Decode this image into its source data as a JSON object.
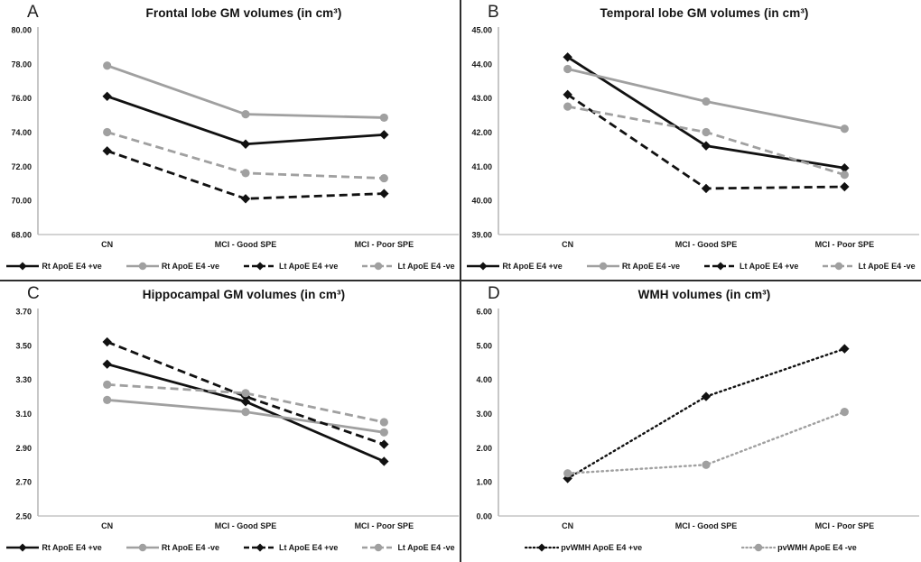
{
  "figure_title": "Four-panel line figure of brain volumes by group and ApoE E4 status",
  "colors": {
    "black_series": "#111111",
    "gray_series": "#a0a0a0",
    "axis": "#b9b9b9",
    "divider": "#2e2e2e",
    "text": "#1a1a1a"
  },
  "chart_data": [
    {
      "type": "line",
      "panel_label": "A",
      "title": "Frontal lobe GM volumes (in cm³)",
      "xlabel": "",
      "ylabel": "",
      "grid": false,
      "legend_position": "bottom",
      "categories": [
        "CN",
        "MCI - Good SPE",
        "MCI - Poor SPE"
      ],
      "ylim": [
        68.0,
        80.0
      ],
      "ytick_step": 2.0,
      "ytick_decimals": 2,
      "series": [
        {
          "name": "Rt ApoE E4 +ve",
          "values": [
            76.1,
            73.3,
            73.85
          ],
          "color": "#111111",
          "dash": "solid",
          "marker": "diamond"
        },
        {
          "name": "Rt ApoE E4 -ve",
          "values": [
            77.9,
            75.05,
            74.85
          ],
          "color": "#a0a0a0",
          "dash": "solid",
          "marker": "circle"
        },
        {
          "name": "Lt ApoE E4 +ve",
          "values": [
            72.9,
            70.1,
            70.4
          ],
          "color": "#111111",
          "dash": "dashed",
          "marker": "diamond"
        },
        {
          "name": "Lt ApoE E4 -ve",
          "values": [
            74.0,
            71.6,
            71.3
          ],
          "color": "#a0a0a0",
          "dash": "dashed",
          "marker": "circle"
        }
      ]
    },
    {
      "type": "line",
      "panel_label": "B",
      "title": "Temporal lobe GM volumes (in cm³)",
      "xlabel": "",
      "ylabel": "",
      "grid": false,
      "legend_position": "bottom",
      "categories": [
        "CN",
        "MCI - Good SPE",
        "MCI - Poor SPE"
      ],
      "ylim": [
        39.0,
        45.0
      ],
      "ytick_step": 1.0,
      "ytick_decimals": 2,
      "series": [
        {
          "name": "Rt ApoE E4 +ve",
          "values": [
            44.2,
            41.6,
            40.95
          ],
          "color": "#111111",
          "dash": "solid",
          "marker": "diamond"
        },
        {
          "name": "Rt ApoE E4 -ve",
          "values": [
            43.85,
            42.9,
            42.1
          ],
          "color": "#a0a0a0",
          "dash": "solid",
          "marker": "circle"
        },
        {
          "name": "Lt ApoE E4 +ve",
          "values": [
            43.1,
            40.35,
            40.4
          ],
          "color": "#111111",
          "dash": "dashed",
          "marker": "diamond"
        },
        {
          "name": "Lt ApoE E4 -ve",
          "values": [
            42.75,
            42.0,
            40.75
          ],
          "color": "#a0a0a0",
          "dash": "dashed",
          "marker": "circle"
        }
      ]
    },
    {
      "type": "line",
      "panel_label": "C",
      "title": "Hippocampal GM volumes (in cm³)",
      "xlabel": "",
      "ylabel": "",
      "grid": false,
      "legend_position": "bottom",
      "categories": [
        "CN",
        "MCI - Good SPE",
        "MCI - Poor SPE"
      ],
      "ylim": [
        2.5,
        3.7
      ],
      "ytick_step": 0.2,
      "ytick_decimals": 2,
      "series": [
        {
          "name": "Rt ApoE E4 +ve",
          "values": [
            3.39,
            3.17,
            2.82
          ],
          "color": "#111111",
          "dash": "solid",
          "marker": "diamond"
        },
        {
          "name": "Rt ApoE E4 -ve",
          "values": [
            3.18,
            3.11,
            2.99
          ],
          "color": "#a0a0a0",
          "dash": "solid",
          "marker": "circle"
        },
        {
          "name": "Lt ApoE E4 +ve",
          "values": [
            3.52,
            3.2,
            2.92
          ],
          "color": "#111111",
          "dash": "dashed",
          "marker": "diamond"
        },
        {
          "name": "Lt ApoE E4 -ve",
          "values": [
            3.27,
            3.22,
            3.05
          ],
          "color": "#a0a0a0",
          "dash": "dashed",
          "marker": "circle"
        }
      ]
    },
    {
      "type": "line",
      "panel_label": "D",
      "title": "WMH volumes (in cm³)",
      "xlabel": "",
      "ylabel": "",
      "grid": false,
      "legend_position": "bottom",
      "categories": [
        "CN",
        "MCI - Good SPE",
        "MCI - Poor SPE"
      ],
      "ylim": [
        0.0,
        6.0
      ],
      "ytick_step": 1.0,
      "ytick_decimals": 2,
      "series": [
        {
          "name": "pvWMH ApoE E4 +ve",
          "values": [
            1.1,
            3.5,
            4.9
          ],
          "color": "#111111",
          "dash": "dotted",
          "marker": "diamond"
        },
        {
          "name": "pvWMH ApoE E4 -ve",
          "values": [
            1.25,
            1.5,
            3.05
          ],
          "color": "#a0a0a0",
          "dash": "dotted",
          "marker": "circle"
        }
      ]
    }
  ]
}
